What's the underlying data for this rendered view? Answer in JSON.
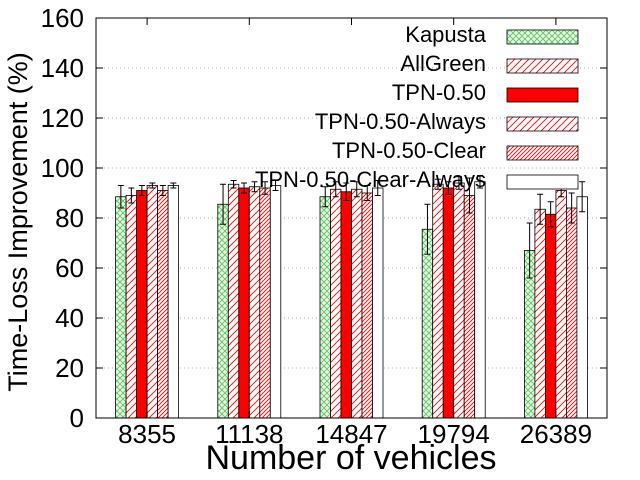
{
  "chart_data": {
    "type": "bar",
    "title": "",
    "xlabel": "Number of vehicles",
    "ylabel": "Time-Loss Improvement (%)",
    "categories": [
      "8355",
      "11138",
      "14847",
      "19794",
      "26389"
    ],
    "ylim": [
      0,
      160
    ],
    "yticks": [
      "0",
      "20",
      "40",
      "60",
      "80",
      "100",
      "120",
      "140",
      "160"
    ],
    "grid": "horizontal dotted",
    "legend_position": "top-right",
    "series": [
      {
        "name": "Kapusta",
        "fill": "light green crosshatch",
        "color": "#59c459",
        "values": [
          88.5,
          85.5,
          88.5,
          75.5,
          67.0
        ],
        "err": [
          4.5,
          8.0,
          4.0,
          10.0,
          11.0
        ]
      },
      {
        "name": "AllGreen",
        "fill": "red diagonal hatch",
        "color": "#ff0000",
        "values": [
          89.0,
          93.5,
          91.5,
          93.5,
          83.5
        ],
        "err": [
          3.0,
          1.5,
          3.0,
          2.0,
          6.0
        ]
      },
      {
        "name": "TPN-0.50",
        "fill": "solid red",
        "color": "#ff0000",
        "values": [
          91.0,
          92.0,
          90.5,
          92.0,
          81.5
        ],
        "err": [
          2.0,
          2.0,
          3.5,
          2.5,
          5.0
        ]
      },
      {
        "name": "TPN-0.50-Always",
        "fill": "red diagonal hatch",
        "color": "#ff0000",
        "values": [
          93.0,
          92.5,
          91.5,
          94.0,
          91.0
        ],
        "err": [
          1.0,
          2.0,
          3.0,
          2.5,
          2.5
        ]
      },
      {
        "name": "TPN-0.50-Clear",
        "fill": "red dense hatch",
        "color": "#ff0000",
        "values": [
          91.0,
          92.0,
          90.0,
          89.0,
          84.0
        ],
        "err": [
          2.0,
          2.5,
          3.0,
          7.0,
          6.0
        ]
      },
      {
        "name": "TPN-0.50-Clear-Always",
        "fill": "white",
        "color": "#ffffff",
        "values": [
          93.0,
          93.0,
          92.0,
          94.5,
          88.5
        ],
        "err": [
          1.0,
          2.0,
          3.0,
          2.5,
          6.0
        ]
      }
    ]
  }
}
